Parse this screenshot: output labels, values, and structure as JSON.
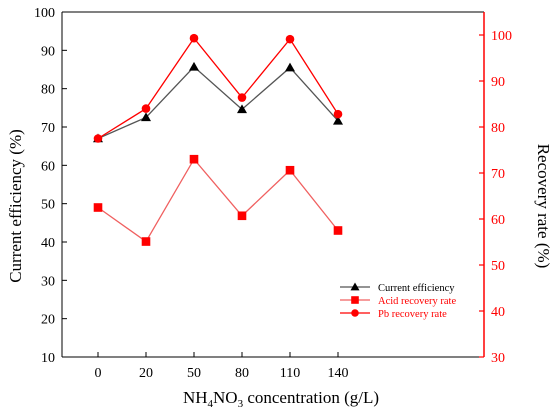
{
  "chart_data": {
    "type": "line",
    "xlabel_parts": {
      "prefix": "NH",
      "sub1": "4",
      "mid": "NO",
      "sub2": "3",
      "suffix": " concentration  (g/L)"
    },
    "ylabel_left": "Current efficiency (%)",
    "ylabel_right": "Recovery rate (%)",
    "categories": [
      "0",
      "20",
      "50",
      "80",
      "110",
      "140"
    ],
    "ylim_left": [
      10,
      100
    ],
    "yticks_left": [
      10,
      20,
      30,
      40,
      50,
      60,
      70,
      80,
      90,
      100
    ],
    "ylim_right": [
      30,
      105
    ],
    "yticks_right": [
      30,
      40,
      50,
      60,
      70,
      80,
      90,
      100
    ],
    "series": [
      {
        "name": "Current efficiency",
        "axis": "left",
        "color": "#000000",
        "line_color": "#555555",
        "marker": "triangle",
        "values": [
          67,
          72.5,
          85.7,
          74.6,
          85.5,
          71.6
        ]
      },
      {
        "name": "Acid recovery rate",
        "axis": "right",
        "color": "#ff0000",
        "line_color": "#f06060",
        "marker": "square",
        "values": [
          62.5,
          55.1,
          73.0,
          60.7,
          70.6,
          57.5
        ]
      },
      {
        "name": "Pb recovery rate",
        "axis": "right",
        "color": "#ff0000",
        "line_color": "#ff0000",
        "marker": "circle",
        "values": [
          77.5,
          84.0,
          99.3,
          86.4,
          99.1,
          82.8
        ]
      }
    ],
    "legend_position": "lower-right",
    "right_axis_color": "#ff0000",
    "grid": false
  }
}
